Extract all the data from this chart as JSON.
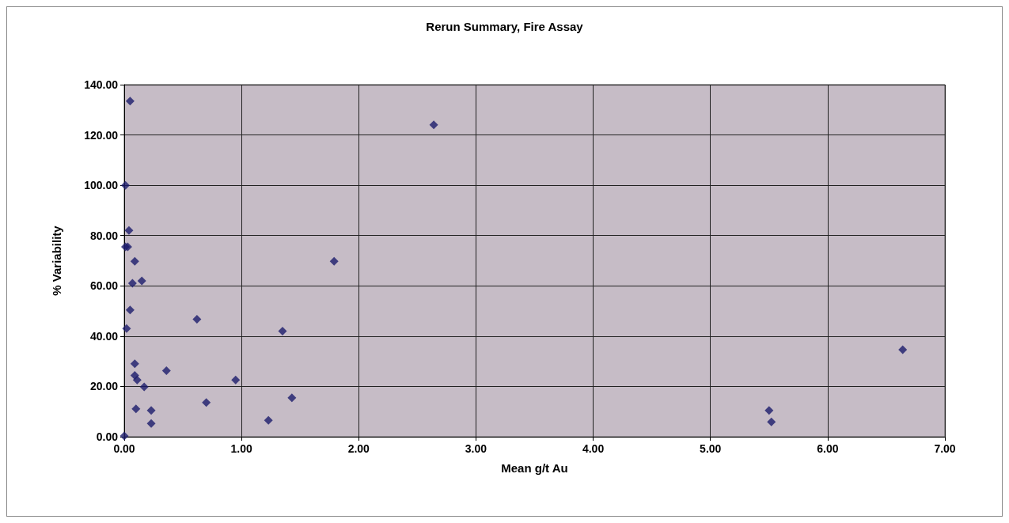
{
  "chart_data": {
    "type": "scatter",
    "title": "Rerun Summary, Fire Assay",
    "xlabel": "Mean g/t Au",
    "ylabel": "% Variability",
    "x": [
      0.05,
      2.64,
      0.01,
      0.04,
      0.01,
      0.03,
      0.09,
      1.79,
      0.07,
      0.15,
      0.05,
      0.62,
      0.02,
      1.35,
      0.09,
      0.36,
      0.09,
      0.11,
      0.17,
      0.95,
      0.7,
      0.1,
      0.23,
      0.23,
      0,
      1.23,
      1.43,
      5.5,
      5.52,
      6.64
    ],
    "series": [
      {
        "color": "#1c1c6b",
        "values": [
          133.5,
          124,
          100,
          82,
          75.5,
          75.5,
          69.8,
          69.8,
          61,
          62,
          50.4,
          46.7,
          43,
          42,
          29,
          26.3,
          24.4,
          22.6,
          19.8,
          22.6,
          13.6,
          11.1,
          10.5,
          5.3,
          0.3,
          6.5,
          15.5,
          10.5,
          5.9,
          34.6
        ]
      }
    ],
    "xlim": [
      0,
      7
    ],
    "ylim": [
      0,
      140
    ],
    "xticks": [
      {
        "value": 0,
        "label": "0.00"
      },
      {
        "value": 1,
        "label": "1.00"
      },
      {
        "value": 2,
        "label": "2.00"
      },
      {
        "value": 3,
        "label": "3.00"
      },
      {
        "value": 4,
        "label": "4.00"
      },
      {
        "value": 5,
        "label": "5.00"
      },
      {
        "value": 6,
        "label": "6.00"
      },
      {
        "value": 7,
        "label": "7.00"
      }
    ],
    "yticks": [
      {
        "value": 0,
        "label": "0.00"
      },
      {
        "value": 20,
        "label": "20.00"
      },
      {
        "value": 40,
        "label": "40.00"
      },
      {
        "value": 60,
        "label": "60.00"
      },
      {
        "value": 80,
        "label": "80.00"
      },
      {
        "value": 100,
        "label": "100.00"
      },
      {
        "value": 120,
        "label": "120.00"
      },
      {
        "value": 140,
        "label": "140.00"
      }
    ],
    "grid": true,
    "marker": "diamond"
  }
}
